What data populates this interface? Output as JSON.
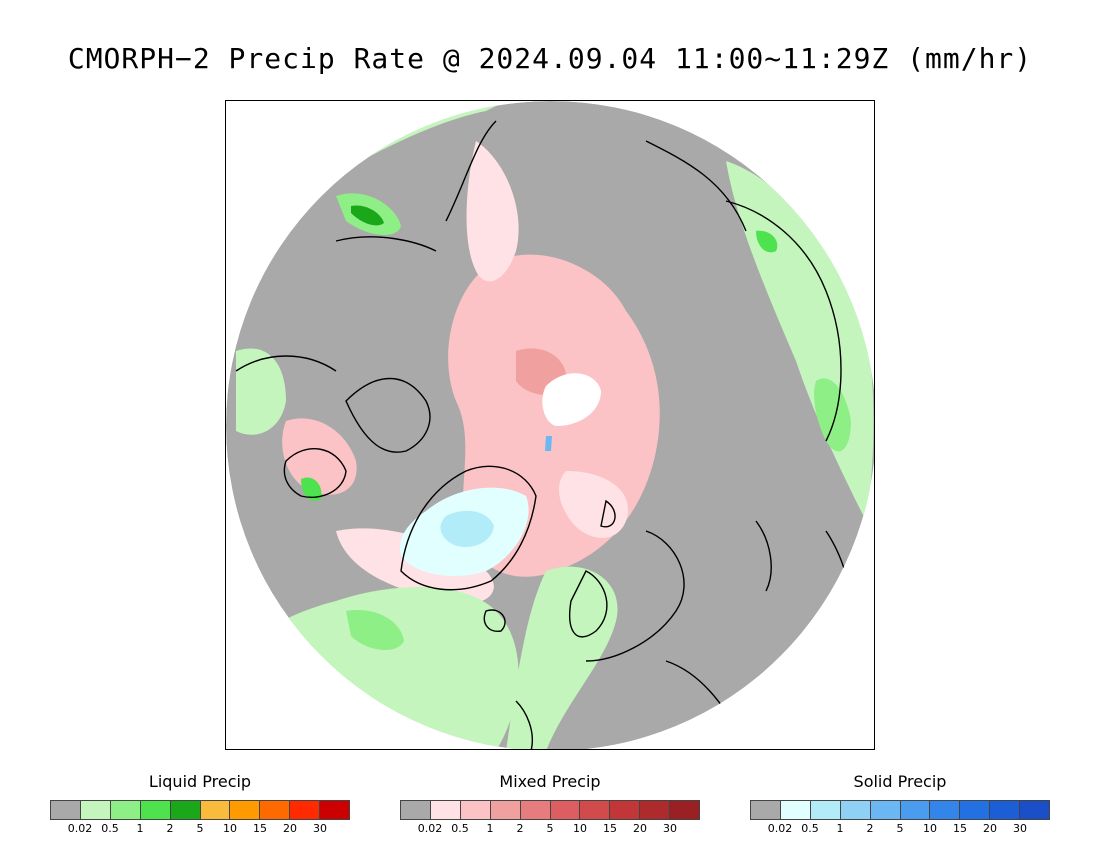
{
  "title": "CMORPH−2 Precip Rate @ 2024.09.04 11:00~11:29Z (mm/hr)",
  "legends": [
    {
      "title": "Liquid Precip",
      "colors": [
        "#a9a9a9",
        "#c3f5bd",
        "#8eef86",
        "#4ee24e",
        "#1aa81a",
        "#f8bb3b",
        "#ff9a00",
        "#ff6a00",
        "#ff2a00",
        "#cc0000"
      ],
      "ticks": [
        "0.02",
        "0.5",
        "1",
        "2",
        "5",
        "10",
        "15",
        "20",
        "30"
      ]
    },
    {
      "title": "Mixed Precip",
      "colors": [
        "#a9a9a9",
        "#ffe2e6",
        "#fcc3c6",
        "#f1a0a0",
        "#e77c7e",
        "#dc5e60",
        "#d14a4c",
        "#c23638",
        "#ad2a2d",
        "#9a2024"
      ],
      "ticks": [
        "0.02",
        "0.5",
        "1",
        "2",
        "5",
        "10",
        "15",
        "20",
        "30"
      ]
    },
    {
      "title": "Solid Precip",
      "colors": [
        "#a9a9a9",
        "#e2ffff",
        "#b3ecf9",
        "#8fd1f5",
        "#6ab7f3",
        "#4a9cee",
        "#3385ea",
        "#2270e2",
        "#1b5ed6",
        "#1a4fc7"
      ],
      "ticks": [
        "0.02",
        "0.5",
        "1",
        "2",
        "5",
        "10",
        "15",
        "20",
        "30"
      ]
    }
  ]
}
